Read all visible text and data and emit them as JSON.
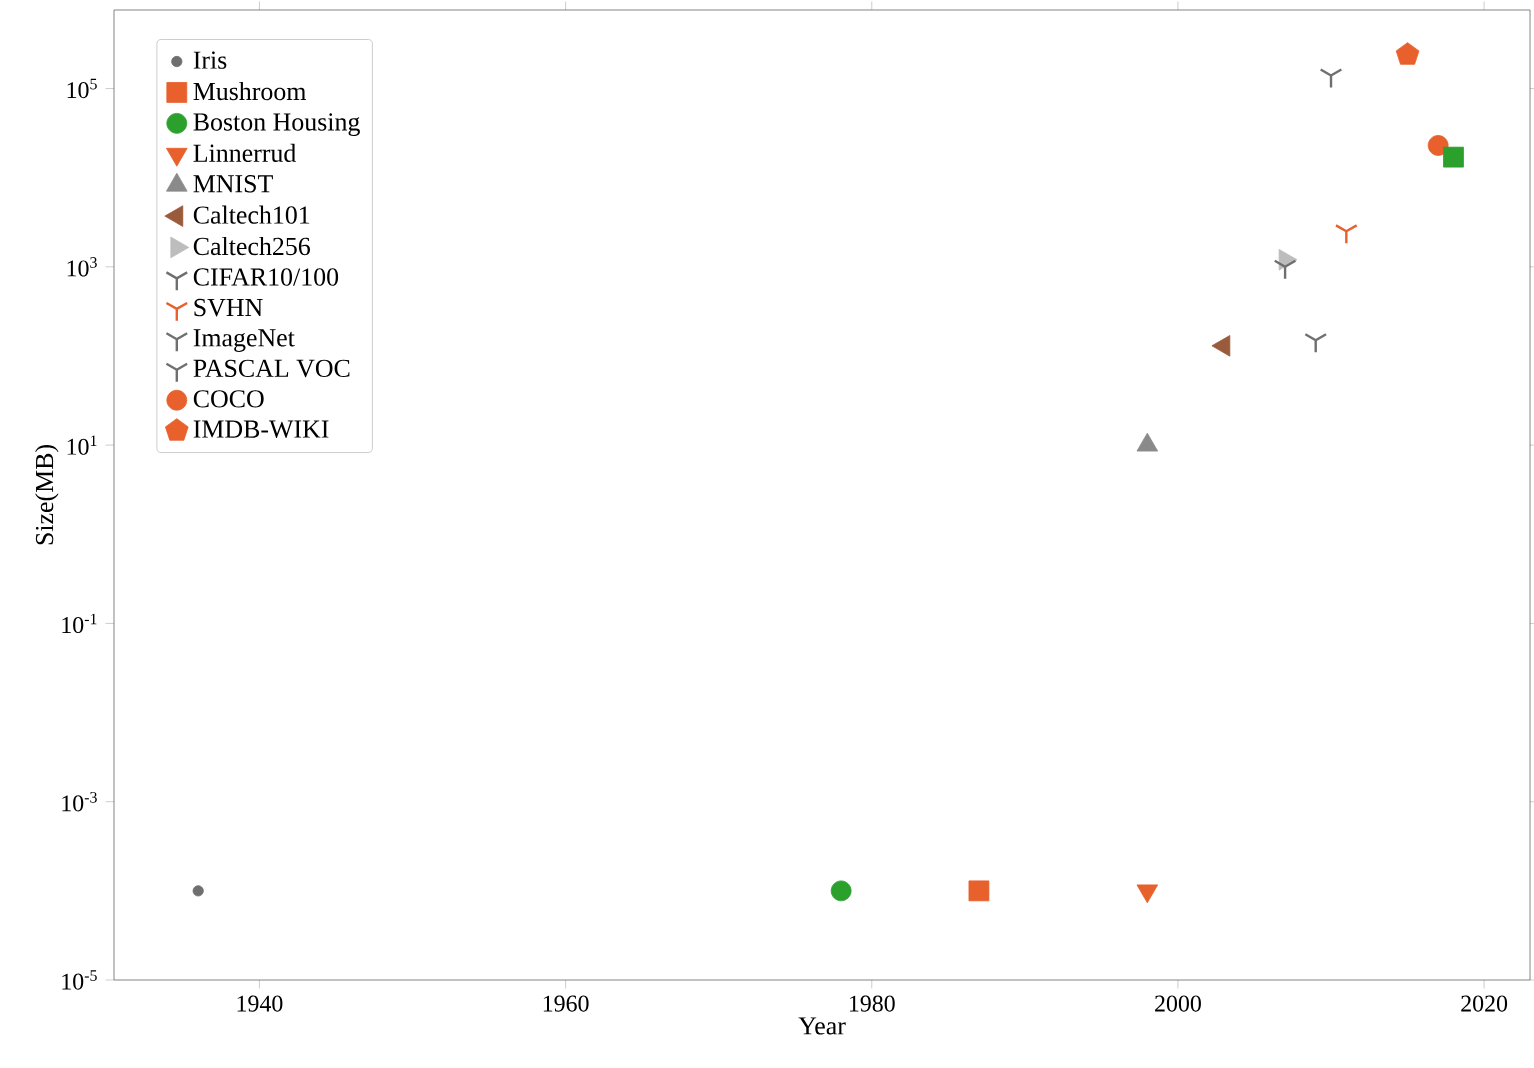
{
  "chart_data": {
    "type": "scatter",
    "xlabel": "Year",
    "ylabel": "Size(MB)",
    "log": "y",
    "legend": "top left",
    "grid": false,
    "xlim": [
      1930.5,
      2023
    ],
    "ylim": [
      1e-05,
      760000.0
    ],
    "xticks": [
      1940,
      1960,
      1980,
      2000,
      2020
    ],
    "yticks": [
      {
        "value": 1e-05,
        "label": "10$^{-5}$"
      },
      {
        "value": 0.001,
        "label": "10$^{-3}$"
      },
      {
        "value": 0.1,
        "label": "10$^{-1}$"
      },
      {
        "value": 10,
        "label": "10$^{1}$"
      },
      {
        "value": 1000,
        "label": "10$^{3}$"
      },
      {
        "value": 100000,
        "label": "10$^{5}$"
      }
    ],
    "series": [
      {
        "name": "Iris",
        "color": "#6f6f6f",
        "marker": "small_circle",
        "x": [
          1936
        ],
        "values": [
          0.0001
        ]
      },
      {
        "name": "Mushroom",
        "color": "#e8602c",
        "marker": "square",
        "x": [
          1987
        ],
        "values": [
          0.0001
        ]
      },
      {
        "name": "Boston Housing",
        "color": "#2ca02c",
        "marker": "circle",
        "x": [
          1978
        ],
        "values": [
          0.0001
        ]
      },
      {
        "name": "Linnerrud",
        "color": "#e8602c",
        "marker": "triangle_down",
        "x": [
          1998
        ],
        "values": [
          0.0001
        ]
      },
      {
        "name": "MNIST",
        "color": "#8a8a8a",
        "marker": "triangle",
        "x": [
          1998
        ],
        "values": [
          10
        ]
      },
      {
        "name": "Caltech101",
        "color": "#9a5a3c",
        "marker": "triangle_left",
        "x": [
          2003
        ],
        "values": [
          130
        ]
      },
      {
        "name": "Caltech256",
        "color": "#bdbdbd",
        "marker": "triangle_right",
        "x": [
          2007
        ],
        "values": [
          1200
        ]
      },
      {
        "name": "CIFAR10/100",
        "color": "#6f6f6f",
        "marker": "cross",
        "x": [
          2009
        ],
        "values": [
          150
        ]
      },
      {
        "name": "SVHN",
        "color": "#e8602c",
        "marker": "cross",
        "x": [
          2011
        ],
        "values": [
          2500
        ]
      },
      {
        "name": "ImageNet",
        "color": "#6f6f6f",
        "marker": "cross",
        "x": [
          2010
        ],
        "values": [
          140000
        ]
      },
      {
        "name": "PASCAL VOC",
        "color": "#6f6f6f",
        "marker": "cross",
        "x": [
          2007
        ],
        "values": [
          1000
        ]
      },
      {
        "name": "COCO",
        "color": "#e8602c",
        "marker": "circle",
        "x": [
          2017
        ],
        "values": [
          23000
        ]
      },
      {
        "color": "#2ca02c",
        "marker": "square",
        "x": [
          2018
        ],
        "values": [
          17000
        ]
      },
      {
        "name": "IMDB-WIKI",
        "color": "#e8602c",
        "marker": "star",
        "x": [
          2015
        ],
        "values": [
          240000
        ]
      }
    ]
  }
}
